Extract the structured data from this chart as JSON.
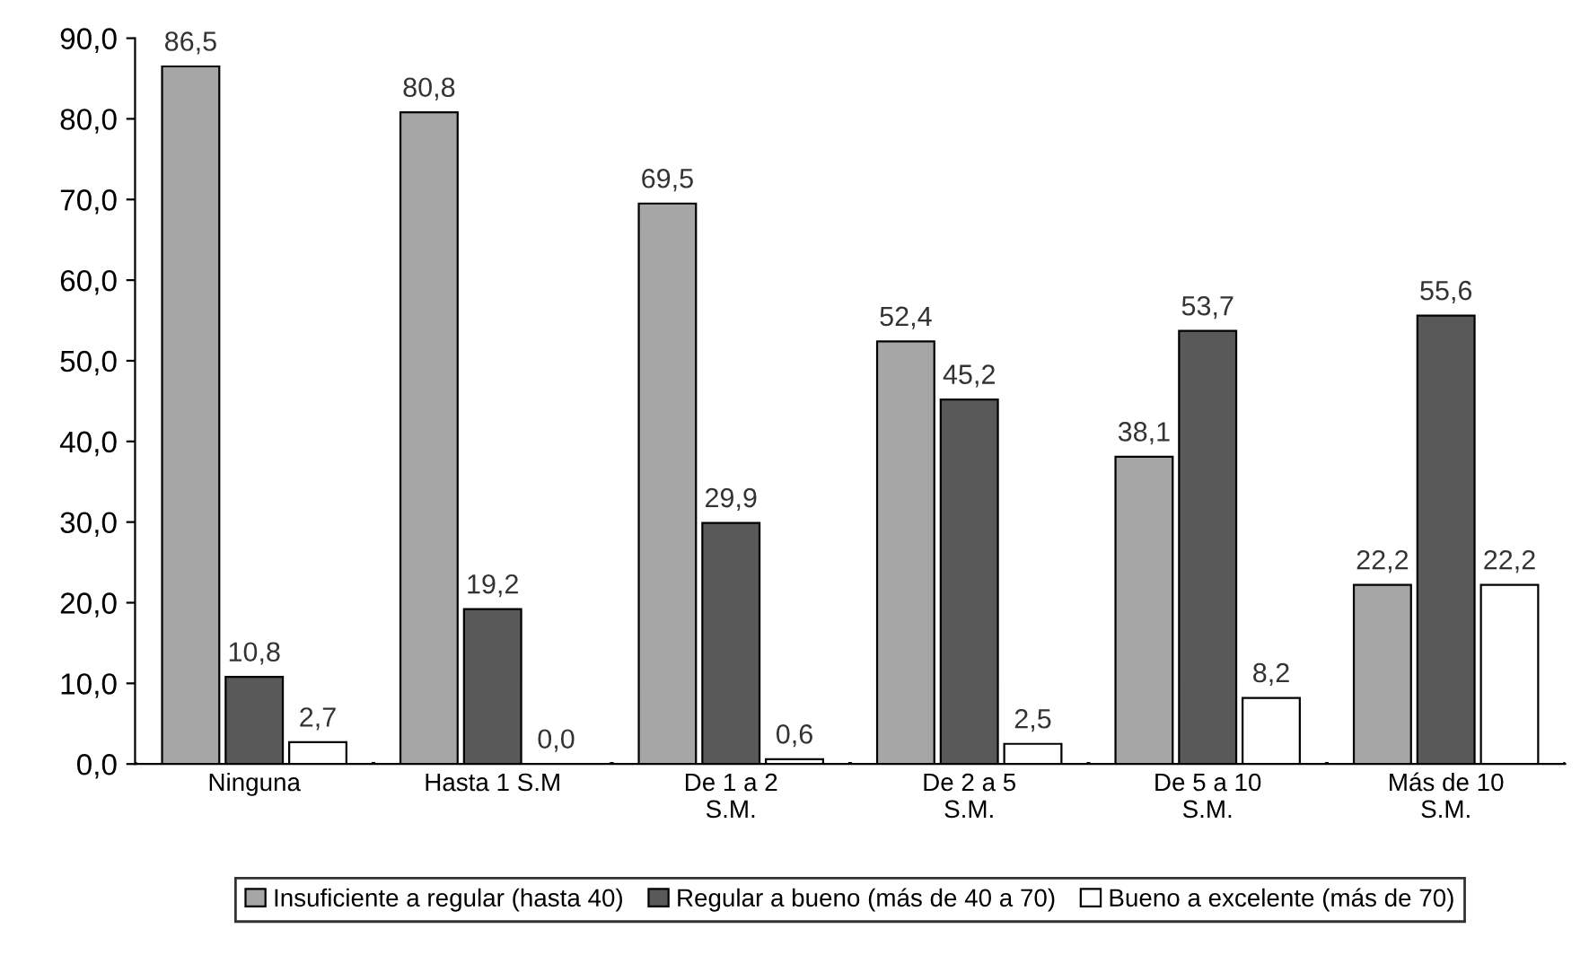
{
  "chart_data": {
    "type": "bar",
    "categories": [
      "Ninguna",
      "Hasta 1 S.M",
      "De 1 a 2\nS.M.",
      "De 2 a 5\nS.M.",
      "De 5 a 10\nS.M.",
      "Más de 10\nS.M."
    ],
    "series": [
      {
        "name": "Insuficiente a regular (hasta 40)",
        "color": "#a6a6a6",
        "values": [
          86.5,
          80.8,
          69.5,
          52.4,
          38.1,
          22.2
        ],
        "value_labels": [
          "86,5",
          "80,8",
          "69,5",
          "52,4",
          "38,1",
          "22,2"
        ]
      },
      {
        "name": "Regular a bueno (más de 40 a 70)",
        "color": "#595959",
        "values": [
          10.8,
          19.2,
          29.9,
          45.2,
          53.7,
          55.6
        ],
        "value_labels": [
          "10,8",
          "19,2",
          "29,9",
          "45,2",
          "53,7",
          "55,6"
        ]
      },
      {
        "name": "Bueno a excelente (más de 70)",
        "color": "#ffffff",
        "values": [
          2.7,
          0.0,
          0.6,
          2.5,
          8.2,
          22.2
        ],
        "value_labels": [
          "2,7",
          "0,0",
          "0,6",
          "2,5",
          "8,2",
          "22,2"
        ]
      }
    ],
    "ylim": [
      0,
      90
    ],
    "yticks": [
      {
        "value": 0,
        "label": "0,0"
      },
      {
        "value": 10,
        "label": "10,0"
      },
      {
        "value": 20,
        "label": "20,0"
      },
      {
        "value": 30,
        "label": "30,0"
      },
      {
        "value": 40,
        "label": "40,0"
      },
      {
        "value": 50,
        "label": "50,0"
      },
      {
        "value": 60,
        "label": "60,0"
      },
      {
        "value": 70,
        "label": "70,0"
      },
      {
        "value": 80,
        "label": "80,0"
      },
      {
        "value": 90,
        "label": "90,0"
      }
    ],
    "grid": false,
    "legend": "bottom"
  }
}
